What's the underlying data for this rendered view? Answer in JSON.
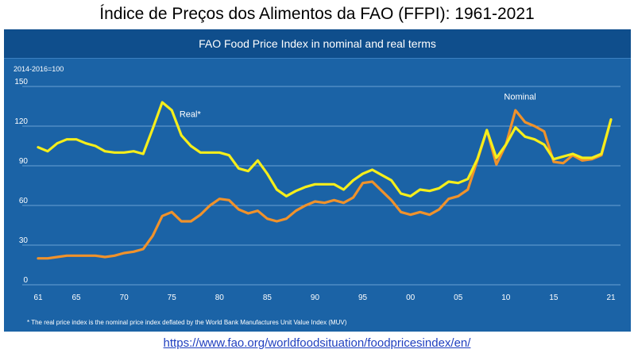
{
  "title": "Índice de Preços dos Alimentos da FAO (FFPI): 1961-2021",
  "link_text": "https://www.fao.org/worldfoodsituation/foodpricesindex/en/",
  "colors": {
    "panel": "#1b63a6",
    "header": "#0f4e8c",
    "grid": "#6aa0d4",
    "real": "#f5ee1b",
    "nominal": "#f0922b",
    "text": "#ffffff"
  },
  "chart_data": {
    "type": "line",
    "title": "FAO Food Price Index in nominal and real terms",
    "unit_label": "2014-2016=100",
    "footnote": "* The real price index is the nominal price index deflated by the World Bank Manufactures Unit Value Index (MUV)",
    "ylim": [
      0,
      150
    ],
    "yticks": [
      0,
      30,
      60,
      90,
      120,
      150
    ],
    "xlim": [
      1961,
      2021
    ],
    "xticks": [
      {
        "year": 1961,
        "label": "61"
      },
      {
        "year": 1965,
        "label": "65"
      },
      {
        "year": 1970,
        "label": "70"
      },
      {
        "year": 1975,
        "label": "75"
      },
      {
        "year": 1980,
        "label": "80"
      },
      {
        "year": 1985,
        "label": "85"
      },
      {
        "year": 1990,
        "label": "90"
      },
      {
        "year": 1995,
        "label": "95"
      },
      {
        "year": 2000,
        "label": "00"
      },
      {
        "year": 2005,
        "label": "05"
      },
      {
        "year": 2010,
        "label": "10"
      },
      {
        "year": 2015,
        "label": "15"
      },
      {
        "year": 2021,
        "label": "21"
      }
    ],
    "grid": true,
    "x": [
      1961,
      1962,
      1963,
      1964,
      1965,
      1966,
      1967,
      1968,
      1969,
      1970,
      1971,
      1972,
      1973,
      1974,
      1975,
      1976,
      1977,
      1978,
      1979,
      1980,
      1981,
      1982,
      1983,
      1984,
      1985,
      1986,
      1987,
      1988,
      1989,
      1990,
      1991,
      1992,
      1993,
      1994,
      1995,
      1996,
      1997,
      1998,
      1999,
      2000,
      2001,
      2002,
      2003,
      2004,
      2005,
      2006,
      2007,
      2008,
      2009,
      2010,
      2011,
      2012,
      2013,
      2014,
      2015,
      2016,
      2017,
      2018,
      2019,
      2020,
      2021
    ],
    "series": [
      {
        "name": "Real*",
        "color": "#f5ee1b",
        "values": [
          104,
          101,
          107,
          110,
          110,
          107,
          105,
          101,
          100,
          100,
          101,
          99,
          118,
          138,
          132,
          113,
          105,
          100,
          100,
          100,
          98,
          88,
          86,
          94,
          84,
          72,
          67,
          71,
          74,
          76,
          76,
          76,
          72,
          79,
          84,
          87,
          83,
          79,
          69,
          67,
          72,
          71,
          73,
          78,
          77,
          80,
          95,
          117,
          96,
          106,
          119,
          112,
          110,
          106,
          95,
          97,
          99,
          96,
          96,
          99,
          125
        ]
      },
      {
        "name": "Nominal",
        "color": "#f0922b",
        "values": [
          20,
          20,
          21,
          22,
          22,
          22,
          22,
          21,
          22,
          24,
          25,
          27,
          37,
          52,
          55,
          48,
          48,
          53,
          60,
          65,
          64,
          57,
          54,
          56,
          50,
          48,
          50,
          56,
          60,
          63,
          62,
          64,
          62,
          66,
          77,
          78,
          71,
          64,
          55,
          53,
          55,
          53,
          57,
          65,
          67,
          72,
          94,
          117,
          91,
          106,
          132,
          123,
          120,
          116,
          93,
          92,
          98,
          94,
          95,
          98,
          125
        ]
      }
    ],
    "annotations": [
      {
        "text": "Real*",
        "series": "Real*"
      },
      {
        "text": "Nominal",
        "series": "Nominal"
      }
    ]
  }
}
